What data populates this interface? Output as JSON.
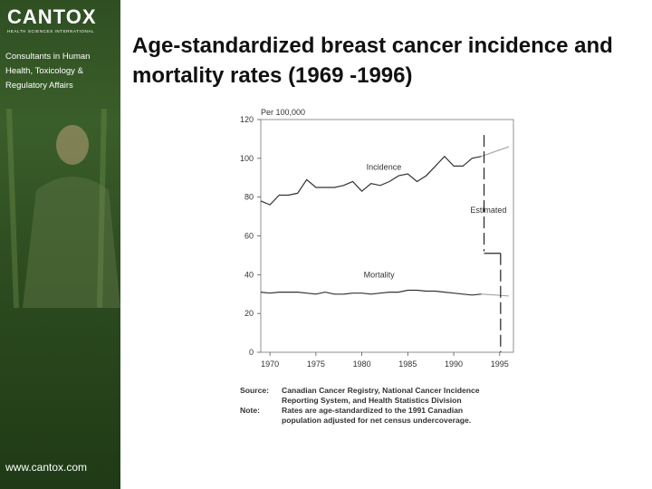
{
  "sidebar": {
    "logo": "CANTOX",
    "logo_sub": "HEALTH SCIENCES INTERNATIONAL",
    "tagline": "Consultants in Human Health, Toxicology & Regulatory Affairs",
    "website": "www.cantox.com"
  },
  "title": "Age-standardized breast cancer incidence and mortality rates (1969 -1996)",
  "chart_data": {
    "type": "line",
    "unit_label": "Per 100,000",
    "x_ticks": [
      "1970",
      "1975",
      "1980",
      "1985",
      "1990",
      "1995"
    ],
    "y_ticks": [
      "0",
      "20",
      "40",
      "60",
      "80",
      "100",
      "120"
    ],
    "xlim": [
      1969,
      1996.5
    ],
    "ylim": [
      0,
      120
    ],
    "grid": false,
    "series": [
      {
        "name": "Incidence",
        "x": [
          1969,
          1970,
          1971,
          1972,
          1973,
          1974,
          1975,
          1976,
          1977,
          1978,
          1979,
          1980,
          1981,
          1982,
          1983,
          1984,
          1985,
          1986,
          1987,
          1988,
          1989,
          1990,
          1991,
          1992,
          1993
        ],
        "values": [
          78,
          76,
          81,
          81,
          82,
          89,
          85,
          85,
          85,
          86,
          88,
          83,
          87,
          86,
          88,
          91,
          92,
          88,
          91,
          96,
          101,
          96,
          96,
          100,
          101
        ]
      },
      {
        "name": "Mortality",
        "x": [
          1969,
          1970,
          1971,
          1972,
          1973,
          1974,
          1975,
          1976,
          1977,
          1978,
          1979,
          1980,
          1981,
          1982,
          1983,
          1984,
          1985,
          1986,
          1987,
          1988,
          1989,
          1990,
          1991,
          1992,
          1993
        ],
        "values": [
          31,
          30.5,
          31,
          31,
          31,
          30.5,
          30,
          31,
          30,
          30,
          30.5,
          30.5,
          30,
          30.5,
          31,
          31,
          32,
          32,
          31.5,
          31.5,
          31,
          30.5,
          30,
          29.5,
          30
        ]
      }
    ],
    "estimated": {
      "label": "Estimated",
      "incidence": {
        "x": [
          1993,
          1996
        ],
        "values": [
          101,
          106
        ]
      },
      "mortality": {
        "x": [
          1993,
          1996
        ],
        "values": [
          30,
          29
        ]
      }
    },
    "source": {
      "source_label": "Source:",
      "source_lines": [
        "Canadian Cancer Registry, National Cancer Incidence",
        "Reporting System, and Health Statistics Division"
      ],
      "note_label": "Note:",
      "note_lines": [
        "Rates are age-standardized to the 1991 Canadian",
        "population adjusted for net census undercoverage."
      ]
    }
  }
}
